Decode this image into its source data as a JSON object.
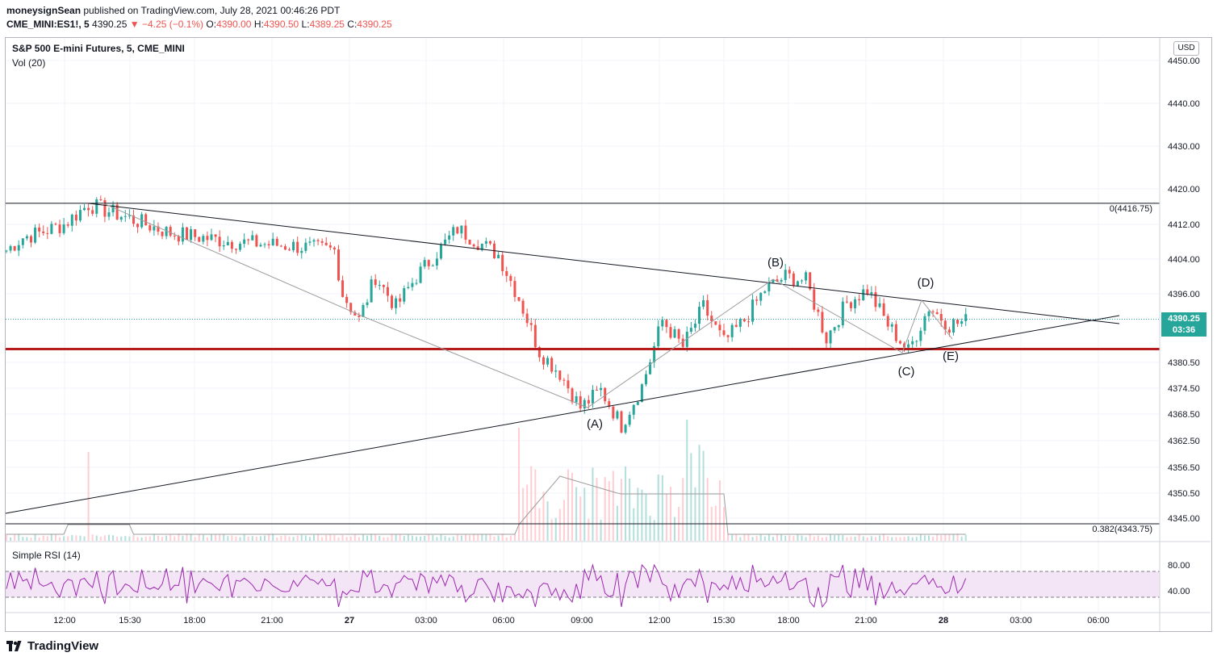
{
  "header": {
    "publisher": "moneysignSean",
    "published_text": "published on TradingView.com, July 28, 2021 00:46:26 PDT",
    "symbol": "CME_MINI:ES1!, 5",
    "last": "4390.25",
    "change_arrow": "▼",
    "change": "−4.25 (−0.1%)",
    "o_label": "O:",
    "o_value": "4390.00",
    "h_label": "H:",
    "h_value": "4390.50",
    "l_label": "L:",
    "l_value": "4389.25",
    "c_label": "C:",
    "c_value": "4390.25"
  },
  "legend": {
    "title": "S&P 500 E-mini Futures, 5, CME_MINI",
    "vol": "Vol (20)",
    "rsi": "Simple RSI (14)"
  },
  "price_axis": {
    "currency": "USD",
    "current_price": "4390.25",
    "countdown": "03:36"
  },
  "fib": {
    "top_label": "0(4416.75)",
    "bottom_label": "0.382(4343.75)"
  },
  "footer": {
    "brand": "TradingView"
  },
  "colors": {
    "up": "#26a69a",
    "down": "#ef5350",
    "support": "#b71c1c",
    "rsi": "#9c27b0",
    "rsi_band": "#f3e5f5",
    "grid": "#f0f3fa"
  },
  "chart_data": {
    "type": "candlestick",
    "title": "S&P 500 E-mini Futures, 5, CME_MINI",
    "x_ticks": [
      "12:00",
      "15:30",
      "18:00",
      "21:00",
      "27",
      "03:00",
      "06:00",
      "09:00",
      "12:00",
      "15:30",
      "18:00",
      "21:00",
      "28",
      "03:00",
      "06:00"
    ],
    "y_ticks": [
      "4450.00",
      "4440.00",
      "4430.00",
      "4420.00",
      "4412.00",
      "4404.00",
      "4396.00",
      "4380.50",
      "4374.50",
      "4368.50",
      "4362.50",
      "4356.50",
      "4350.50",
      "4345.00"
    ],
    "rsi_ticks": [
      "80.00",
      "40.00"
    ],
    "ylim": [
      4338,
      4453
    ],
    "fib_levels": [
      {
        "ratio": 0,
        "price": 4416.75
      },
      {
        "ratio": 0.382,
        "price": 4343.75
      }
    ],
    "support_level": 4383.5,
    "current_price": 4390.25,
    "wave_labels": [
      {
        "label": "(A)",
        "time": "09:00",
        "price": 4369
      },
      {
        "label": "(B)",
        "time": "17:30",
        "price": 4399
      },
      {
        "label": "(C)",
        "time": "22:30",
        "price": 4383
      },
      {
        "label": "(D)",
        "time": "23:00",
        "price": 4394.5
      },
      {
        "label": "(E)",
        "time": "00:00",
        "price": 4385
      }
    ],
    "price_path": [
      {
        "t": 0,
        "p": 4406
      },
      {
        "t": 4,
        "p": 4409
      },
      {
        "t": 8,
        "p": 4410
      },
      {
        "t": 14,
        "p": 4412
      },
      {
        "t": 20,
        "p": 4416.5
      },
      {
        "t": 28,
        "p": 4414
      },
      {
        "t": 40,
        "p": 4410
      },
      {
        "t": 55,
        "p": 4408
      },
      {
        "t": 70,
        "p": 4407
      },
      {
        "t": 80,
        "p": 4406
      },
      {
        "t": 82,
        "p": 4396
      },
      {
        "t": 86,
        "p": 4390
      },
      {
        "t": 90,
        "p": 4400
      },
      {
        "t": 95,
        "p": 4393
      },
      {
        "t": 100,
        "p": 4400
      },
      {
        "t": 110,
        "p": 4411
      },
      {
        "t": 115,
        "p": 4408
      },
      {
        "t": 120,
        "p": 4405
      },
      {
        "t": 125,
        "p": 4395
      },
      {
        "t": 130,
        "p": 4383
      },
      {
        "t": 135,
        "p": 4378
      },
      {
        "t": 140,
        "p": 4370
      },
      {
        "t": 145,
        "p": 4374
      },
      {
        "t": 150,
        "p": 4366
      },
      {
        "t": 155,
        "p": 4375
      },
      {
        "t": 160,
        "p": 4390
      },
      {
        "t": 165,
        "p": 4384
      },
      {
        "t": 170,
        "p": 4393
      },
      {
        "t": 175,
        "p": 4385
      },
      {
        "t": 180,
        "p": 4390
      },
      {
        "t": 185,
        "p": 4397
      },
      {
        "t": 190,
        "p": 4400
      },
      {
        "t": 195,
        "p": 4399
      },
      {
        "t": 200,
        "p": 4386
      },
      {
        "t": 205,
        "p": 4394
      },
      {
        "t": 210,
        "p": 4397
      },
      {
        "t": 215,
        "p": 4389
      },
      {
        "t": 220,
        "p": 4383
      },
      {
        "t": 225,
        "p": 4393
      },
      {
        "t": 230,
        "p": 4389
      },
      {
        "t": 235,
        "p": 4390
      }
    ]
  }
}
